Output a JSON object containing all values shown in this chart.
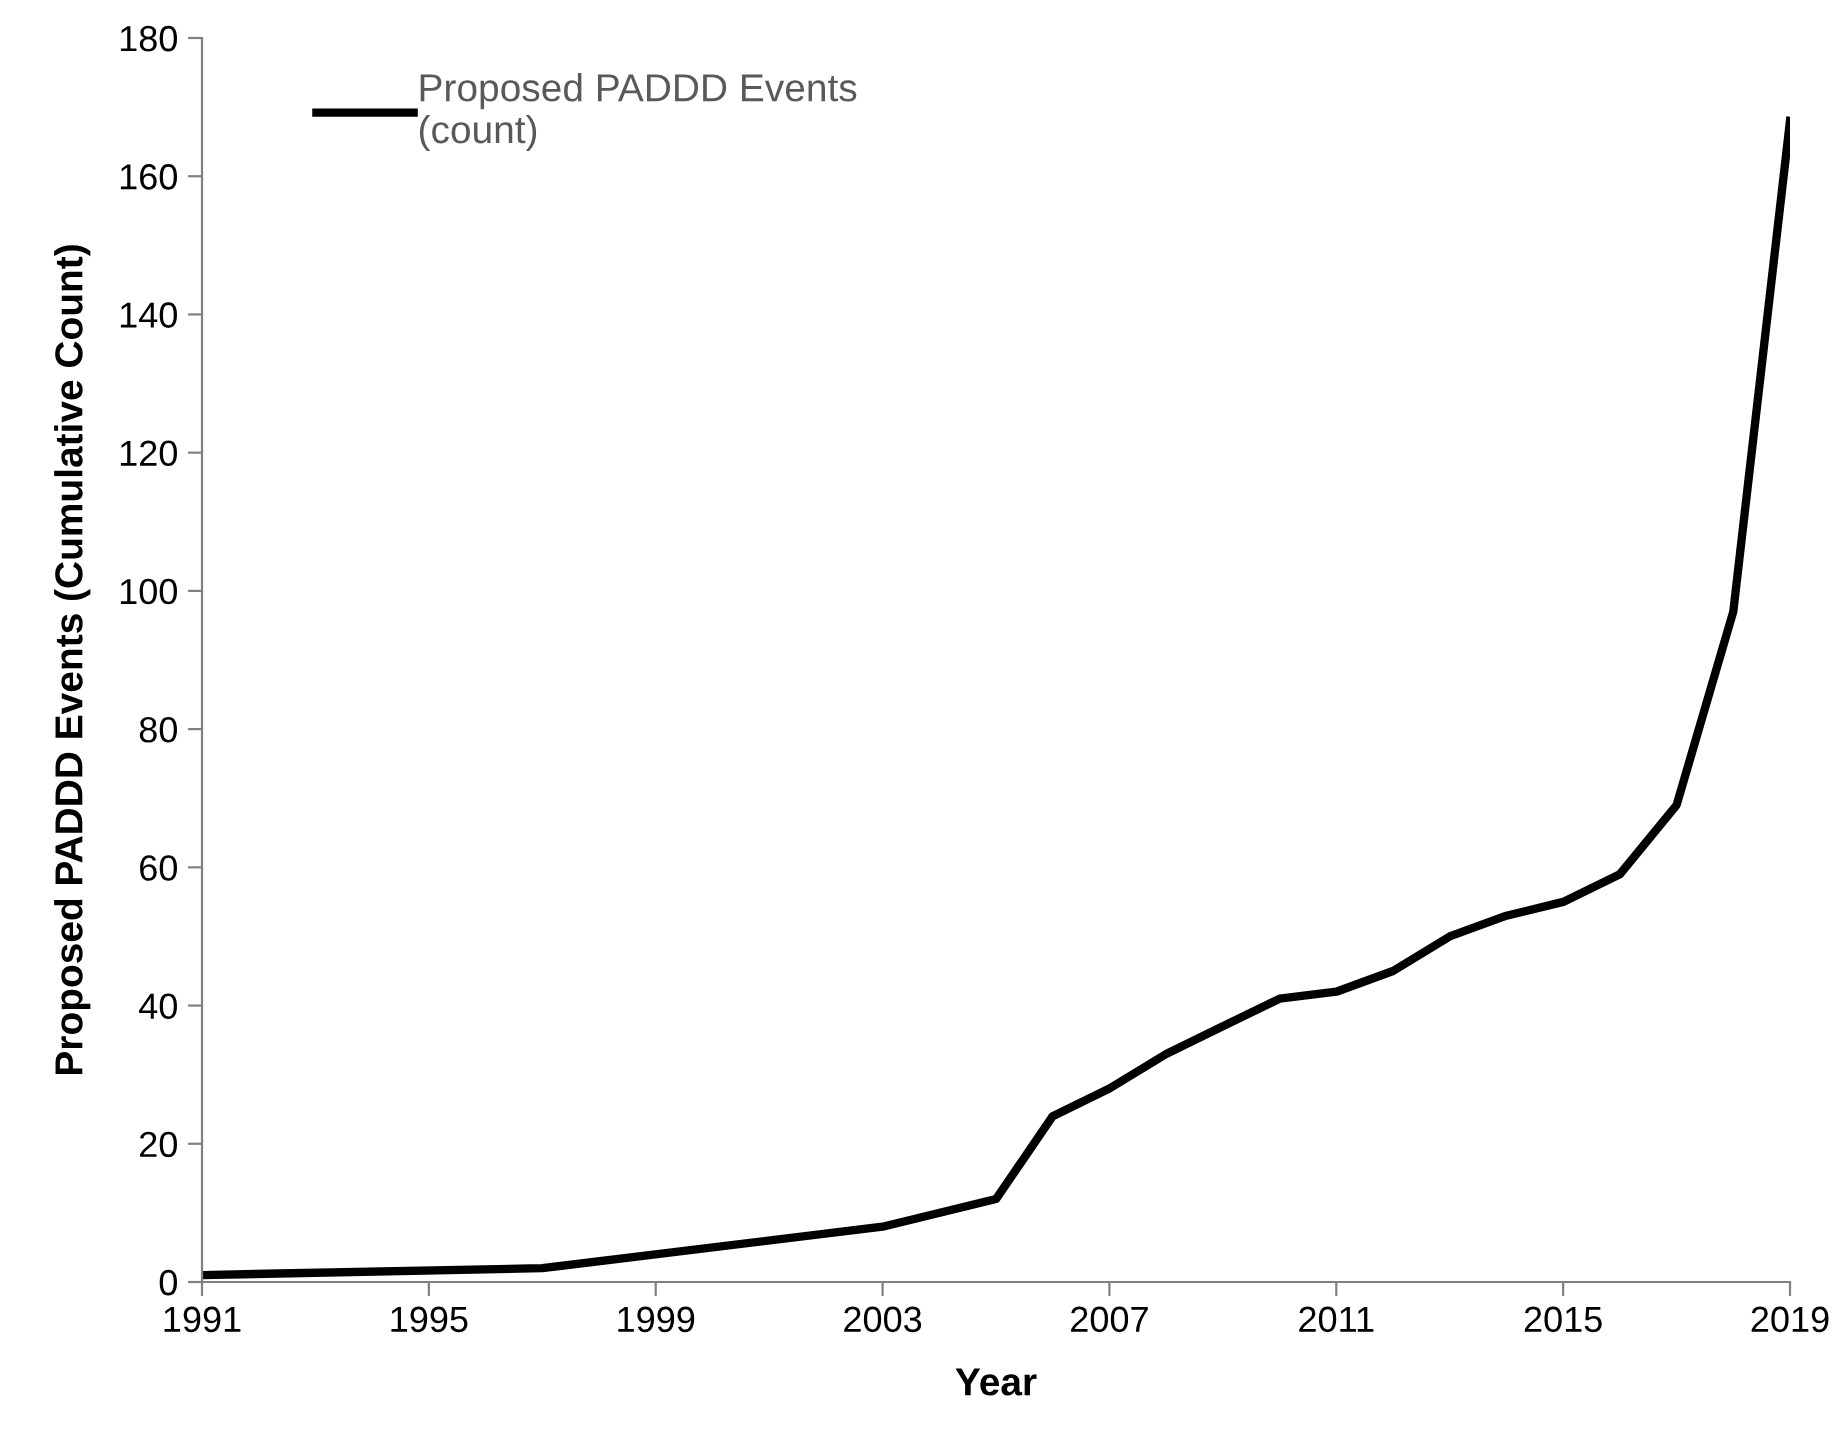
{
  "chart_data": {
    "type": "line",
    "xlabel": "Year",
    "ylabel": "Proposed PADDD Events (Cumulative Count)",
    "series": [
      {
        "name": "Proposed PADDD Events\n(count)",
        "color": "#000000",
        "x": [
          1991,
          1997,
          2003,
          2005,
          2006,
          2007,
          2008,
          2009,
          2010,
          2011,
          2012,
          2013,
          2014,
          2015,
          2016,
          2017,
          2018,
          2019
        ],
        "values": [
          1,
          2,
          8,
          12,
          24,
          28,
          33,
          37,
          41,
          42,
          45,
          50,
          53,
          55,
          59,
          69,
          97,
          168
        ]
      }
    ],
    "xlim": [
      1991,
      2019
    ],
    "xticks": [
      1991,
      1995,
      1999,
      2003,
      2007,
      2011,
      2015,
      2019
    ],
    "ylim": [
      0,
      180
    ],
    "yticks": [
      0,
      20,
      40,
      60,
      80,
      100,
      120,
      140,
      160,
      180
    ],
    "grid": false,
    "legend": "top left",
    "marker": "none",
    "line_style": "solid"
  }
}
